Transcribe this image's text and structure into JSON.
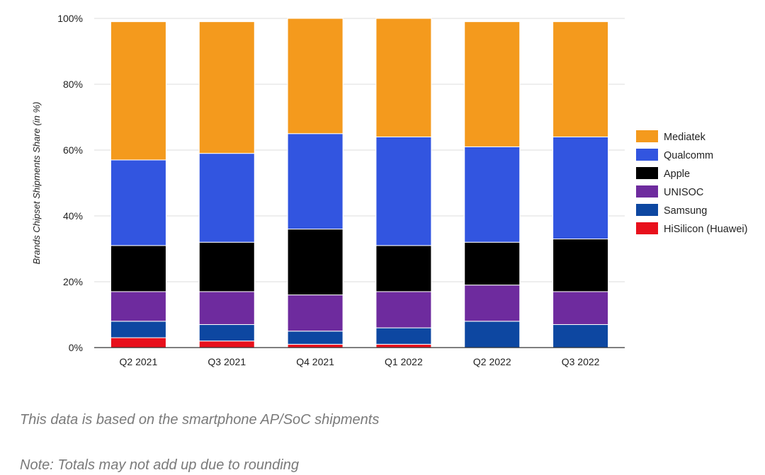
{
  "chart_data": {
    "type": "bar",
    "stacked": true,
    "ylabel": "Brands Chipset Shipments Share (in %)",
    "ylim": [
      0,
      100
    ],
    "yticks": [
      "0%",
      "20%",
      "40%",
      "60%",
      "80%",
      "100%"
    ],
    "grid": true,
    "legend_position": "right",
    "categories": [
      "Q2 2021",
      "Q3 2021",
      "Q4 2021",
      "Q1 2022",
      "Q2 2022",
      "Q3 2022"
    ],
    "series": [
      {
        "name": "HiSilicon (Huawei)",
        "color": "#e8101c",
        "values": [
          3,
          2,
          1,
          1,
          0,
          0
        ]
      },
      {
        "name": "Samsung",
        "color": "#0d47a1",
        "values": [
          5,
          5,
          4,
          5,
          8,
          7
        ]
      },
      {
        "name": "UNISOC",
        "color": "#6e2b9e",
        "values": [
          9,
          10,
          11,
          11,
          11,
          10
        ]
      },
      {
        "name": "Apple",
        "color": "#000000",
        "values": [
          14,
          15,
          20,
          14,
          13,
          16
        ]
      },
      {
        "name": "Qualcomm",
        "color": "#3255e0",
        "values": [
          26,
          27,
          29,
          33,
          29,
          31
        ]
      },
      {
        "name": "Mediatek",
        "color": "#f49a1d",
        "values": [
          42,
          40,
          35,
          36,
          38,
          35
        ]
      }
    ],
    "legend_order": [
      "Mediatek",
      "Qualcomm",
      "Apple",
      "UNISOC",
      "Samsung",
      "HiSilicon (Huawei)"
    ]
  },
  "notes": [
    "This data is based on the smartphone AP/SoC shipments",
    "Note: Totals may not add up due to rounding"
  ]
}
